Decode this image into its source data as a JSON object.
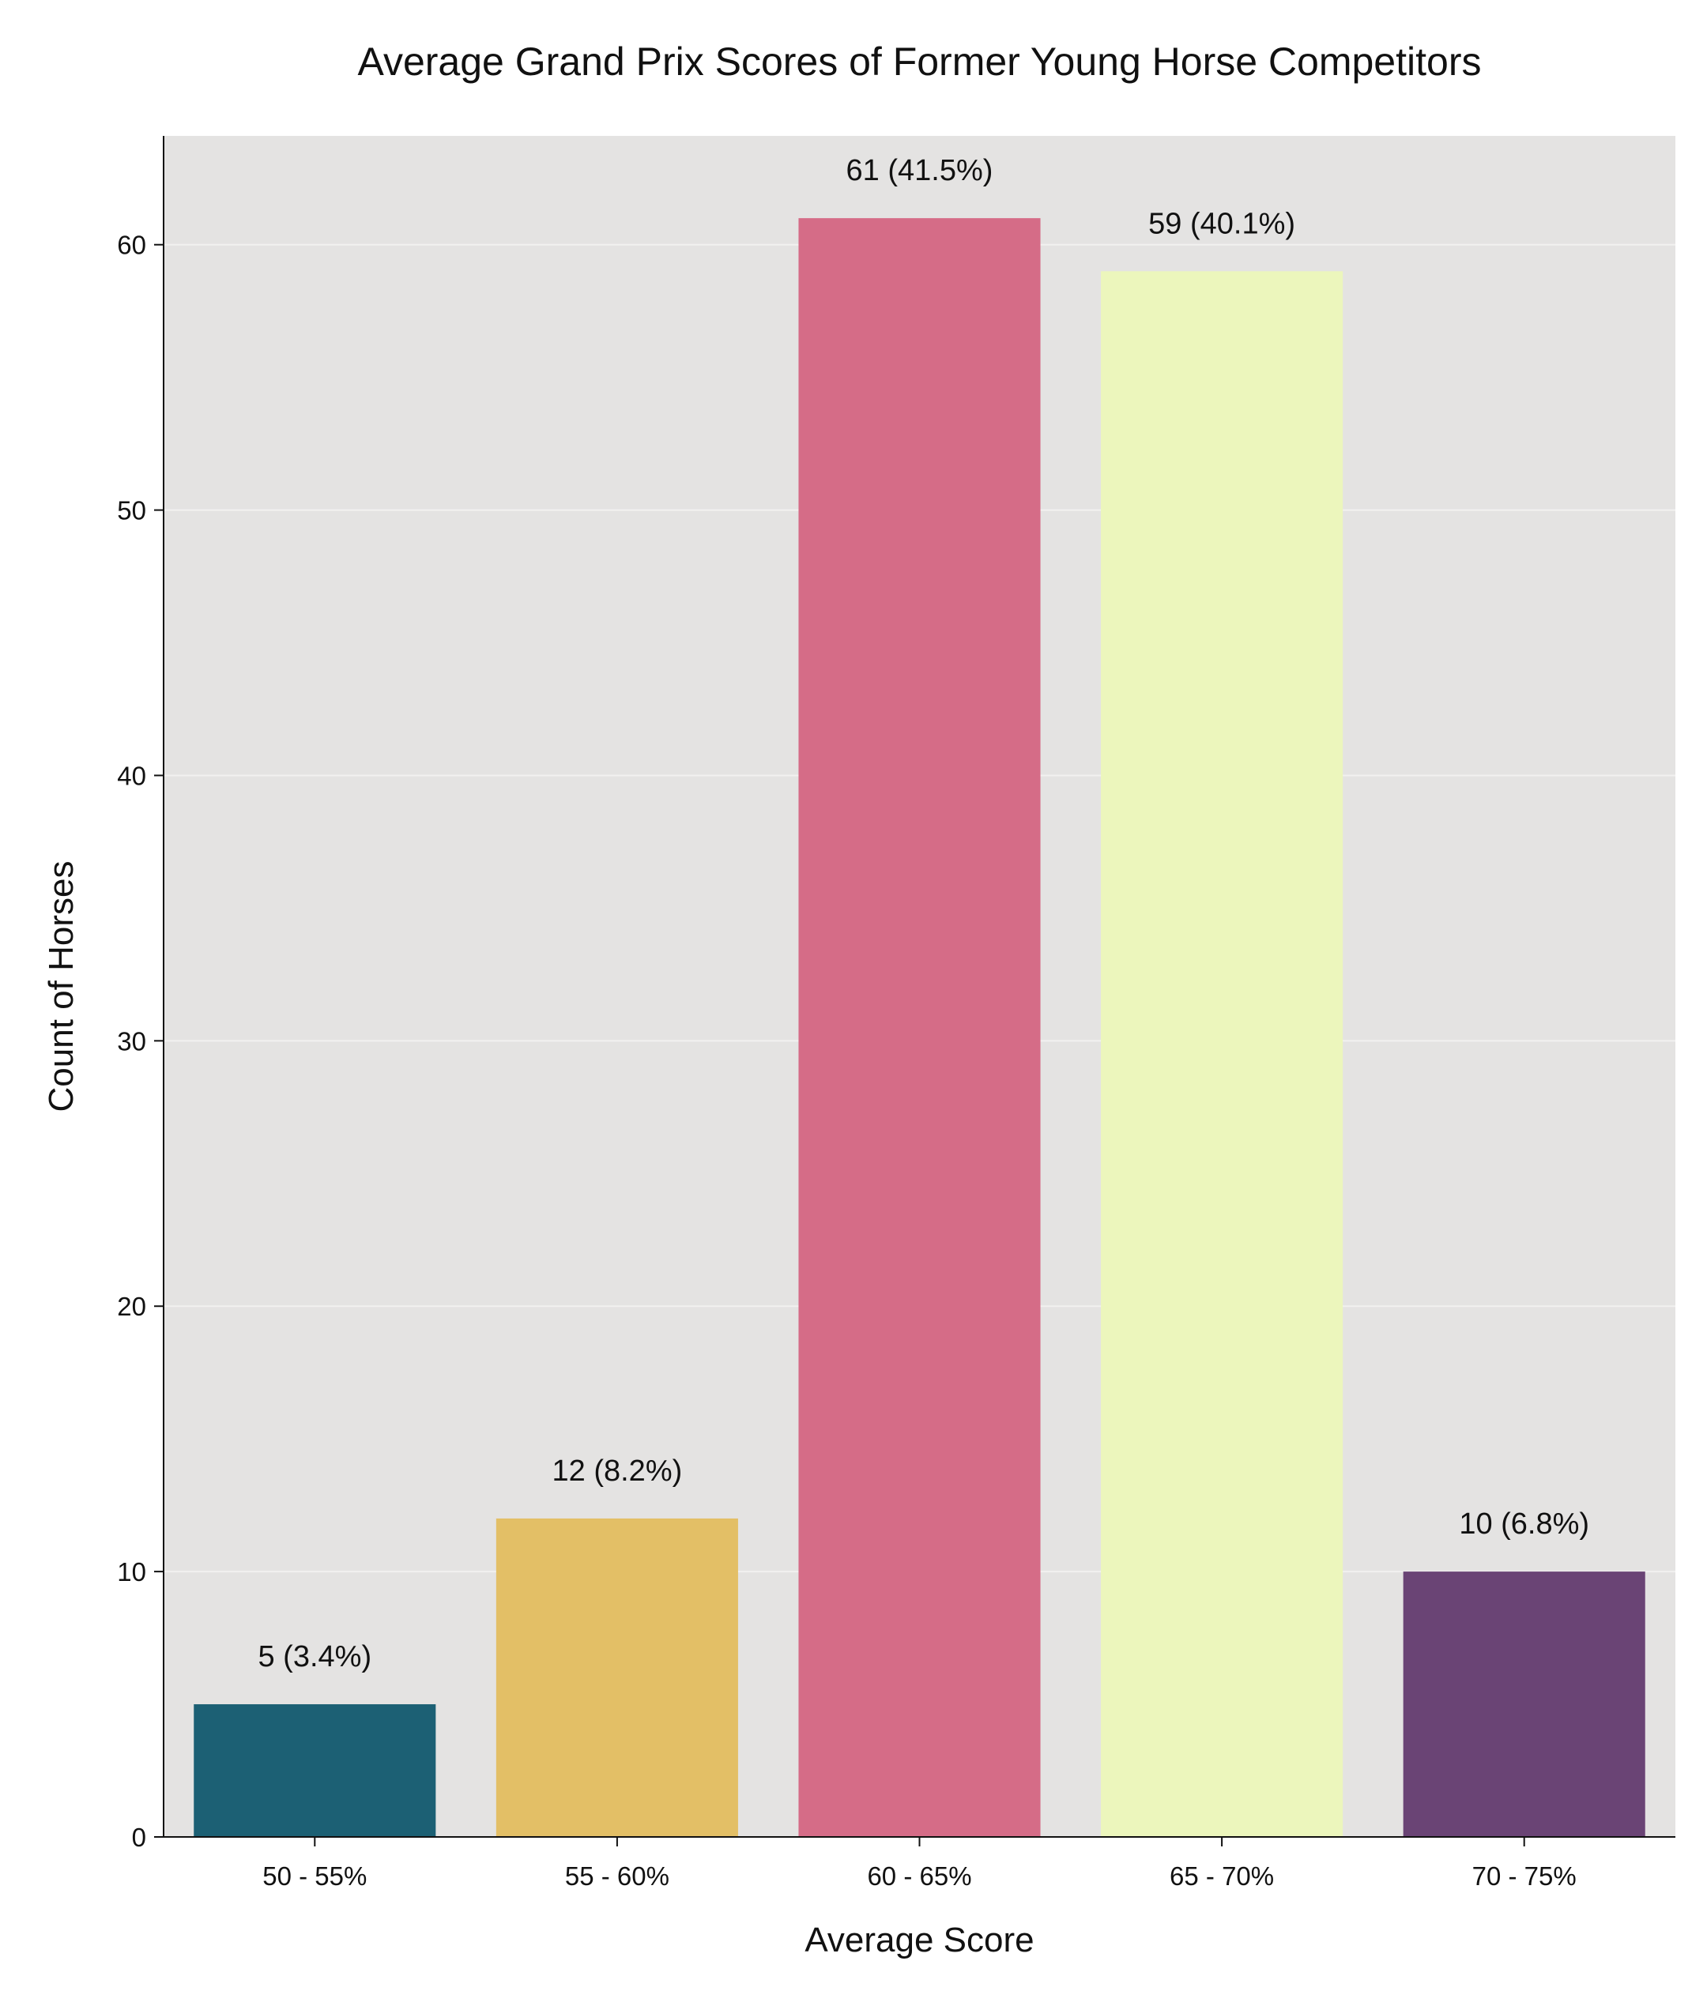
{
  "chart_data": {
    "type": "bar",
    "title": "Average Grand Prix Scores of Former Young Horse Competitors",
    "xlabel": "Average Score",
    "ylabel": "Count of Horses",
    "categories": [
      "50 - 55%",
      "55 - 60%",
      "60 - 65%",
      "65 - 70%",
      "70 - 75%"
    ],
    "values": [
      5,
      12,
      61,
      59,
      10
    ],
    "data_labels": [
      "5 (3.4%)",
      "12 (8.2%)",
      "61 (41.5%)",
      "59 (40.1%)",
      "10 (6.8%)"
    ],
    "bar_colors": [
      "#1c6074",
      "#e3bf66",
      "#d56c87",
      "#ecf6bc",
      "#6a4475"
    ],
    "ylim": [
      0,
      64.1
    ],
    "yticks": [
      0,
      10,
      20,
      30,
      40,
      50,
      60
    ],
    "ytick_labels": [
      "0",
      "10",
      "20",
      "30",
      "40",
      "50",
      "60"
    ],
    "grid": true,
    "plot_background": "#e4e3e2",
    "grid_color": "#f2f1f0",
    "axis_color": "#111111",
    "legend": "none"
  }
}
